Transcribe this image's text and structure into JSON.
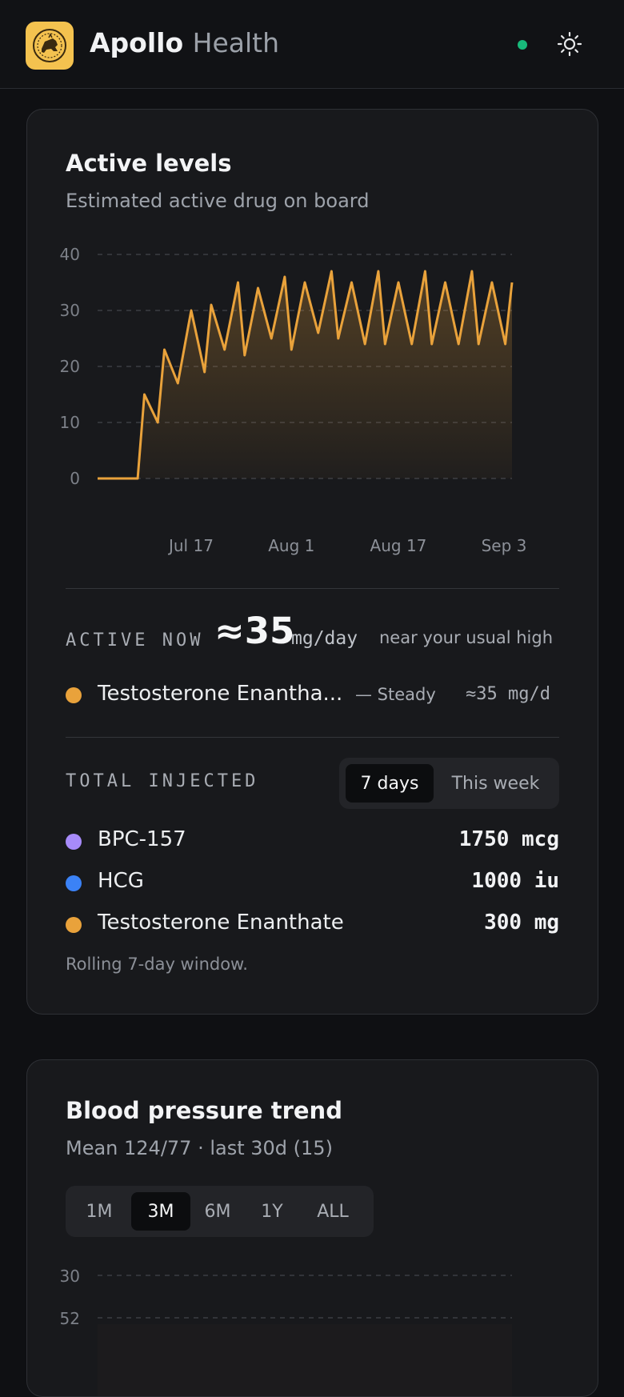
{
  "header": {
    "brand_main": "Apollo",
    "brand_sub": "Health",
    "logo_icon": "lion-emblem-icon",
    "status_color": "#18b97a",
    "theme_icon": "sun-icon"
  },
  "active_levels": {
    "title": "Active levels",
    "subtitle": "Estimated active drug on board",
    "active_now_label": "ACTIVE NOW",
    "active_now_value": "≈35",
    "active_now_unit": "mg/day",
    "active_now_hint": "near your usual high",
    "current": {
      "name": "Testosterone Enantha...",
      "trend": "— Steady",
      "value": "≈35 mg/d",
      "color": "#e9a23b"
    },
    "total_injected_label": "TOTAL INJECTED",
    "tabs": [
      "7 days",
      "This week"
    ],
    "active_tab": "7 days",
    "totals": [
      {
        "name": "BPC-157",
        "amount": "1750 mcg",
        "color": "#a78bfa"
      },
      {
        "name": "HCG",
        "amount": "1000 iu",
        "color": "#3b82f6"
      },
      {
        "name": "Testosterone Enanthate",
        "amount": "300 mg",
        "color": "#e9a23b"
      }
    ],
    "footnote": "Rolling 7-day window."
  },
  "blood_pressure": {
    "title": "Blood pressure trend",
    "subtitle": "Mean 124/77 · last 30d (15)",
    "ranges": [
      "1M",
      "3M",
      "6M",
      "1Y",
      "ALL"
    ],
    "active_range": "3M",
    "y_ticks_visible": [
      "30",
      "52"
    ]
  },
  "chart_data": {
    "type": "area",
    "series": [
      {
        "color": "#e9a23b",
        "x": [
          "Jul 3",
          "Jul 5",
          "Jul 7",
          "Jul 9",
          "Jul 10",
          "Jul 12",
          "Jul 13",
          "Jul 15",
          "Jul 17",
          "Jul 19",
          "Jul 20",
          "Jul 22",
          "Jul 24",
          "Jul 25",
          "Jul 27",
          "Jul 29",
          "Jul 31",
          "Aug 1",
          "Aug 3",
          "Aug 5",
          "Aug 7",
          "Aug 8",
          "Aug 10",
          "Aug 12",
          "Aug 14",
          "Aug 15",
          "Aug 17",
          "Aug 19",
          "Aug 21",
          "Aug 22",
          "Aug 24",
          "Aug 26",
          "Aug 28",
          "Aug 29",
          "Aug 31",
          "Sep 2",
          "Sep 3"
        ],
        "values": [
          0,
          0,
          0,
          0,
          15,
          10,
          23,
          17,
          30,
          19,
          31,
          23,
          35,
          22,
          34,
          25,
          36,
          23,
          35,
          26,
          37,
          25,
          35,
          24,
          37,
          24,
          35,
          24,
          37,
          24,
          35,
          24,
          37,
          24,
          35,
          24,
          35
        ]
      }
    ],
    "x_ticks": [
      "Jul 17",
      "Aug 1",
      "Aug 17",
      "Sep 3"
    ],
    "y_ticks": [
      0,
      10,
      20,
      30,
      40
    ],
    "y_tick_labels": [
      "0",
      "10",
      "20",
      "30",
      "40"
    ],
    "ylim": [
      0,
      40
    ],
    "grid": true
  }
}
